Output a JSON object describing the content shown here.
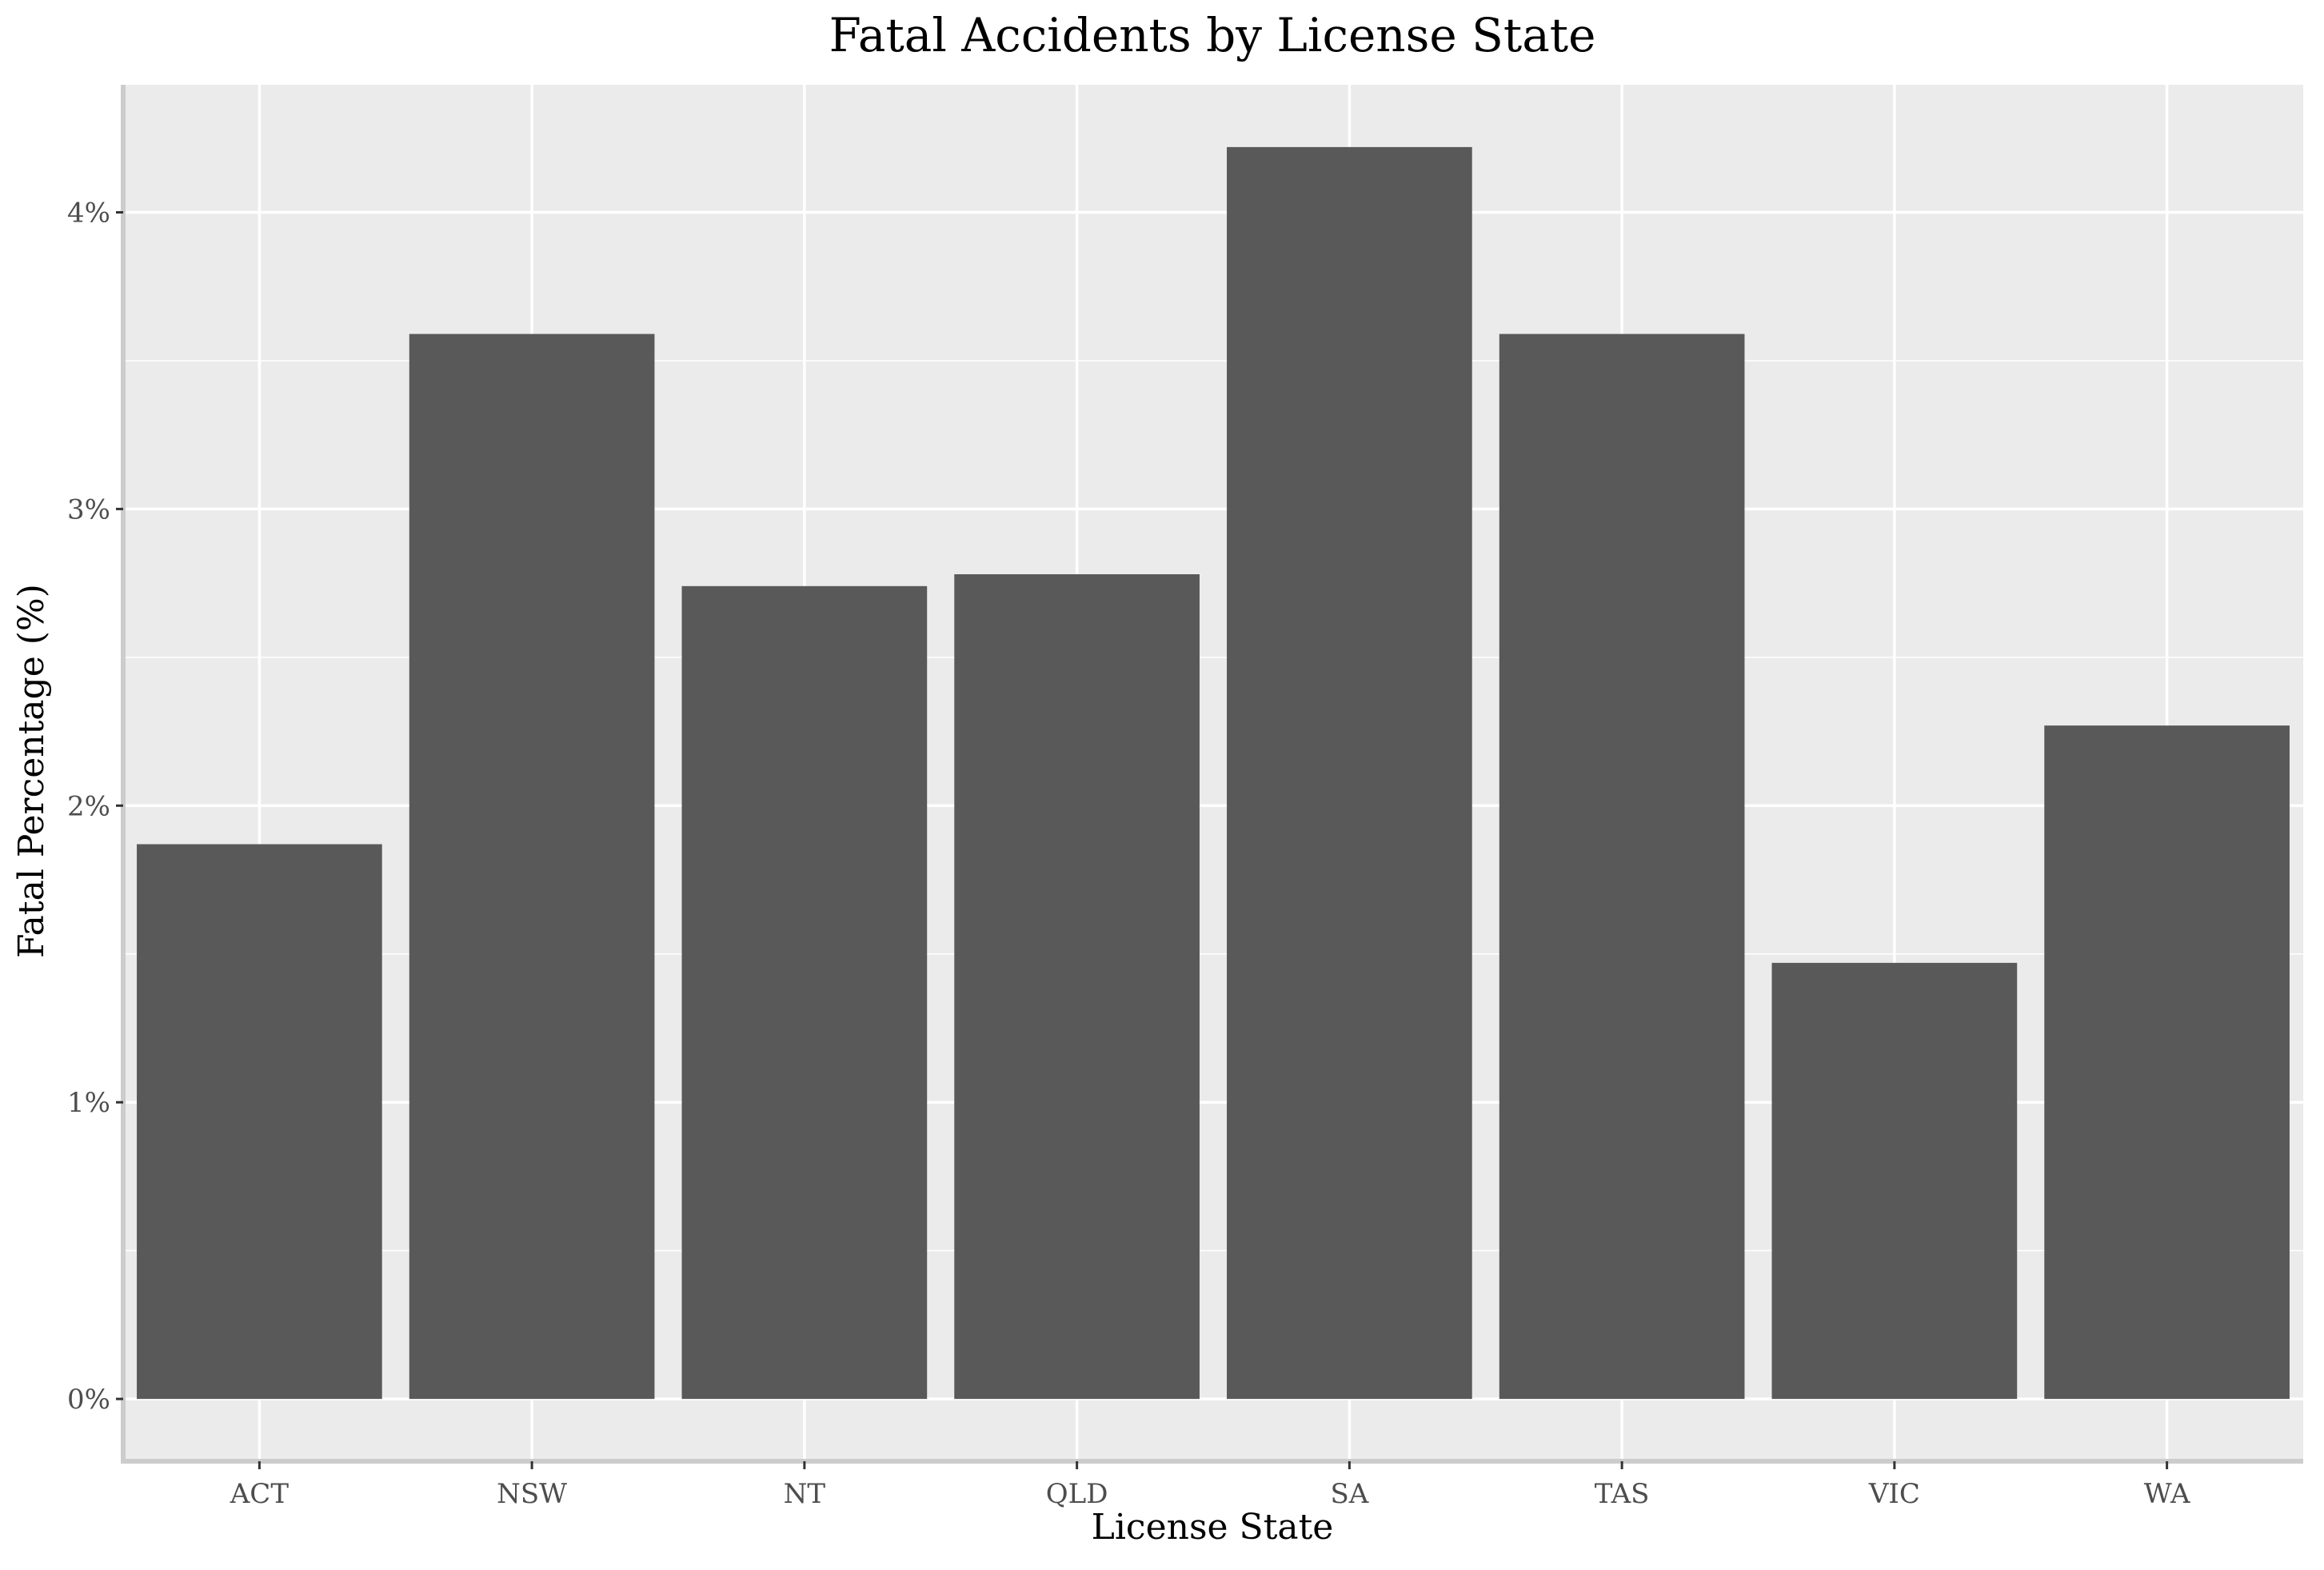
{
  "chart_data": {
    "type": "bar",
    "title": "Fatal Accidents by License State",
    "xlabel": "License State",
    "ylabel": "Fatal Percentage (%)",
    "categories": [
      "ACT",
      "NSW",
      "NT",
      "QLD",
      "SA",
      "TAS",
      "VIC",
      "WA"
    ],
    "values": [
      1.87,
      3.59,
      2.74,
      2.78,
      4.22,
      3.59,
      1.47,
      2.27
    ],
    "unit": "%",
    "ylim": [
      -0.21,
      4.43
    ],
    "yticks": [
      0,
      1,
      2,
      3,
      4
    ],
    "ytick_labels": [
      "0%",
      "1%",
      "2%",
      "3%",
      "4%"
    ],
    "grid": true,
    "colors": {
      "bar": "#595959",
      "panel": "#ebebeb",
      "grid": "#ffffff",
      "axis_line": "#cccccc",
      "tick_text": "#4d4d4d"
    }
  }
}
